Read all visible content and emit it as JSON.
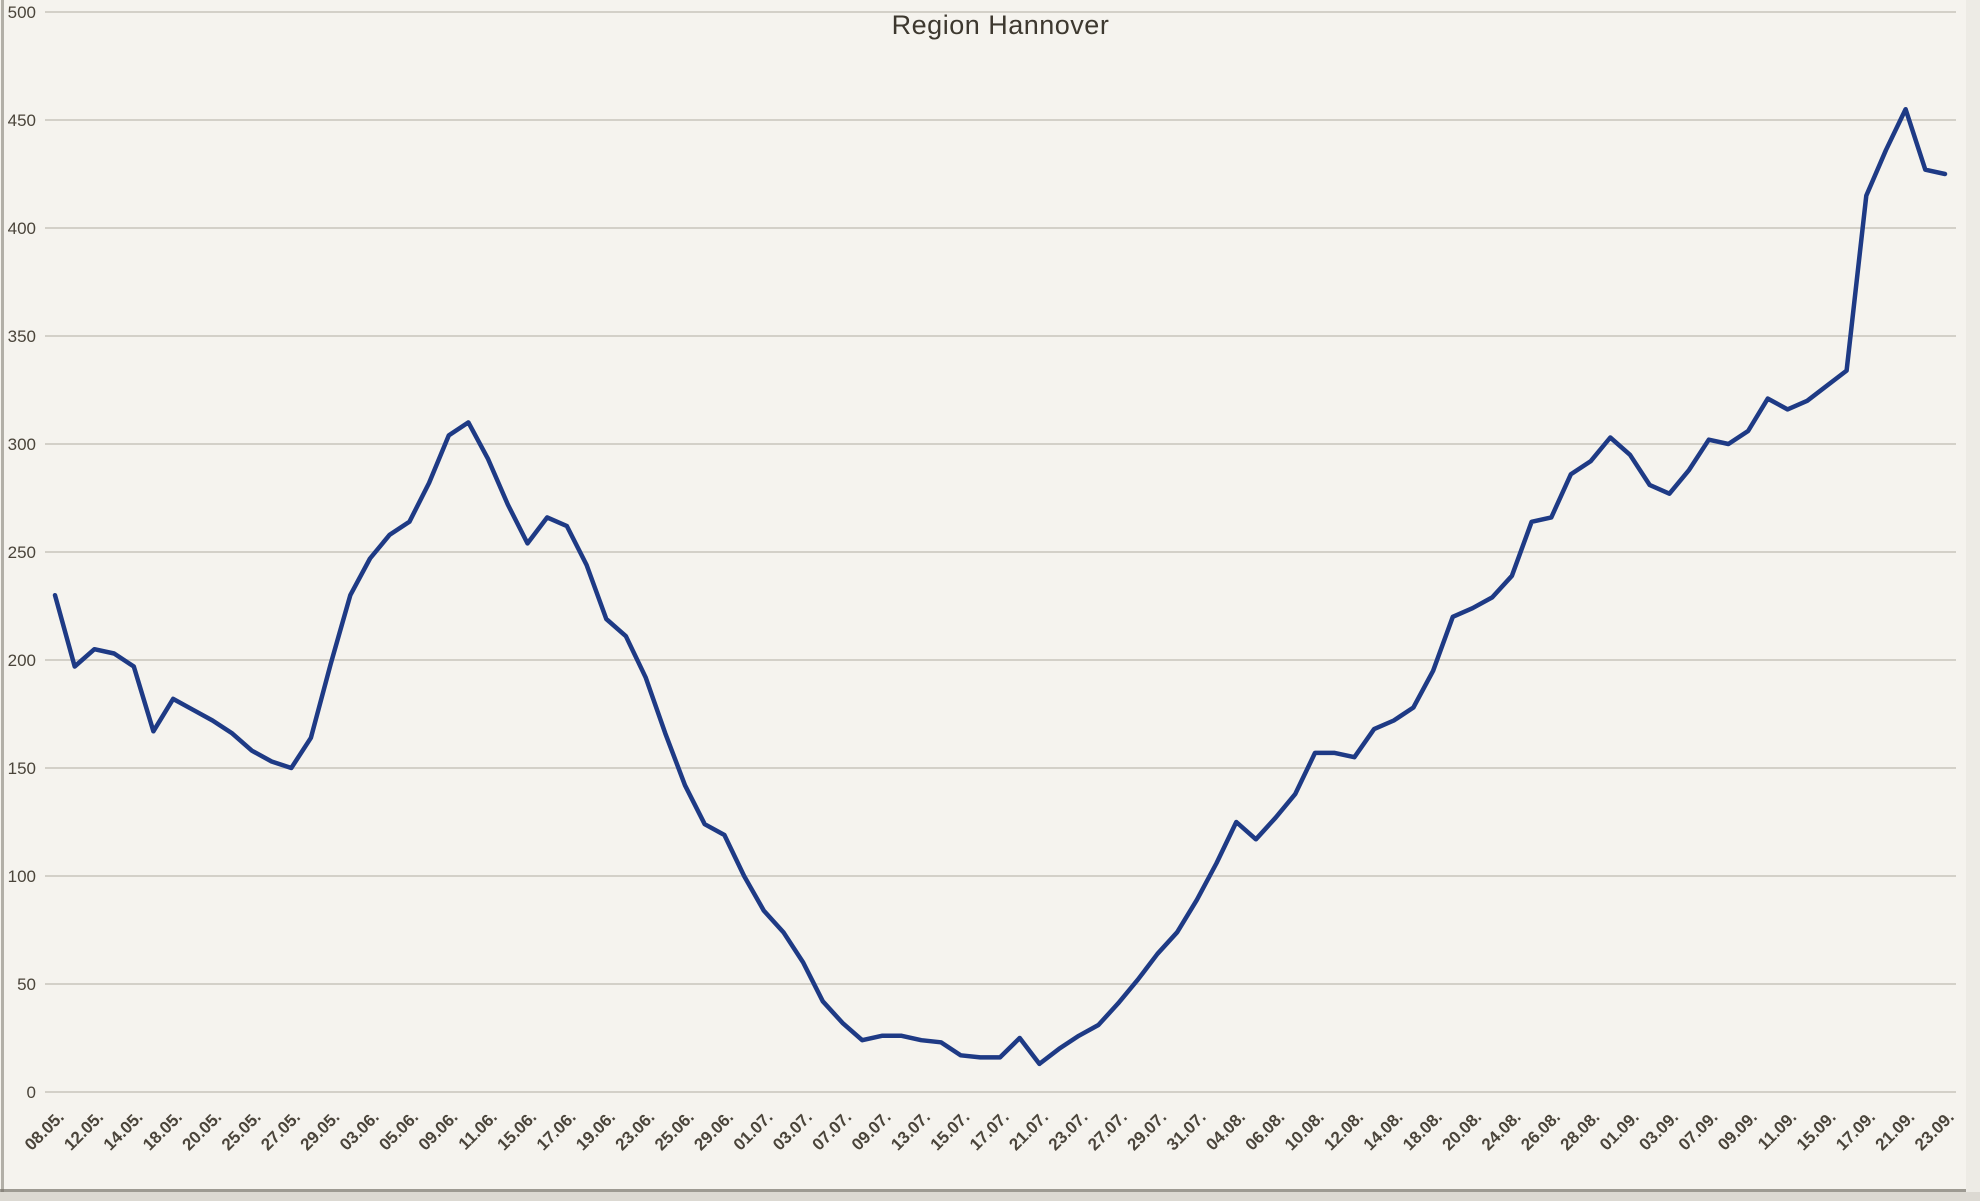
{
  "chart_data": {
    "type": "line",
    "title": "Region Hannover",
    "xlabel": "",
    "ylabel": "",
    "ylim": [
      0,
      500
    ],
    "ytick_step": 50,
    "grid": "horizontal-only",
    "legend_position": "none",
    "x_labels": [
      "08.05.",
      "12.05.",
      "14.05.",
      "18.05.",
      "20.05.",
      "25.05.",
      "27.05.",
      "29.05.",
      "03.06.",
      "05.06.",
      "09.06.",
      "11.06.",
      "15.06.",
      "17.06.",
      "19.06.",
      "23.06.",
      "25.06.",
      "29.06.",
      "01.07.",
      "03.07.",
      "07.07.",
      "09.07.",
      "13.07.",
      "15.07.",
      "17.07.",
      "21.07.",
      "23.07.",
      "27.07.",
      "29.07.",
      "31.07.",
      "04.08.",
      "06.08.",
      "10.08.",
      "12.08.",
      "14.08.",
      "18.08.",
      "20.08.",
      "24.08.",
      "26.08.",
      "28.08.",
      "01.09.",
      "03.09.",
      "07.09.",
      "09.09.",
      "11.09.",
      "15.09.",
      "17.09.",
      "21.09.",
      "23.09."
    ],
    "label_every_nth_point": 2,
    "values": [
      230,
      197,
      205,
      203,
      197,
      167,
      182,
      177,
      172,
      166,
      158,
      153,
      150,
      164,
      198,
      230,
      247,
      258,
      264,
      282,
      304,
      310,
      293,
      272,
      254,
      266,
      262,
      244,
      219,
      211,
      192,
      166,
      142,
      124,
      119,
      100,
      84,
      74,
      60,
      42,
      32,
      24,
      26,
      26,
      24,
      23,
      17,
      16,
      16,
      25,
      13,
      20,
      26,
      31,
      41,
      52,
      64,
      74,
      89,
      106,
      125,
      117,
      127,
      138,
      157,
      157,
      155,
      168,
      172,
      178,
      195,
      220,
      224,
      229,
      239,
      264,
      266,
      286,
      292,
      303,
      295,
      281,
      277,
      288,
      302,
      300,
      306,
      321,
      316,
      320,
      327,
      334,
      415,
      436,
      455,
      427,
      425
    ],
    "series_name": "Region Hannover",
    "line_color": "#1e3a85",
    "background_color": "#f5f3ee",
    "grid_color": "#d3d0c8",
    "text_color": "#4a443a",
    "title_color": "#3d382f"
  }
}
